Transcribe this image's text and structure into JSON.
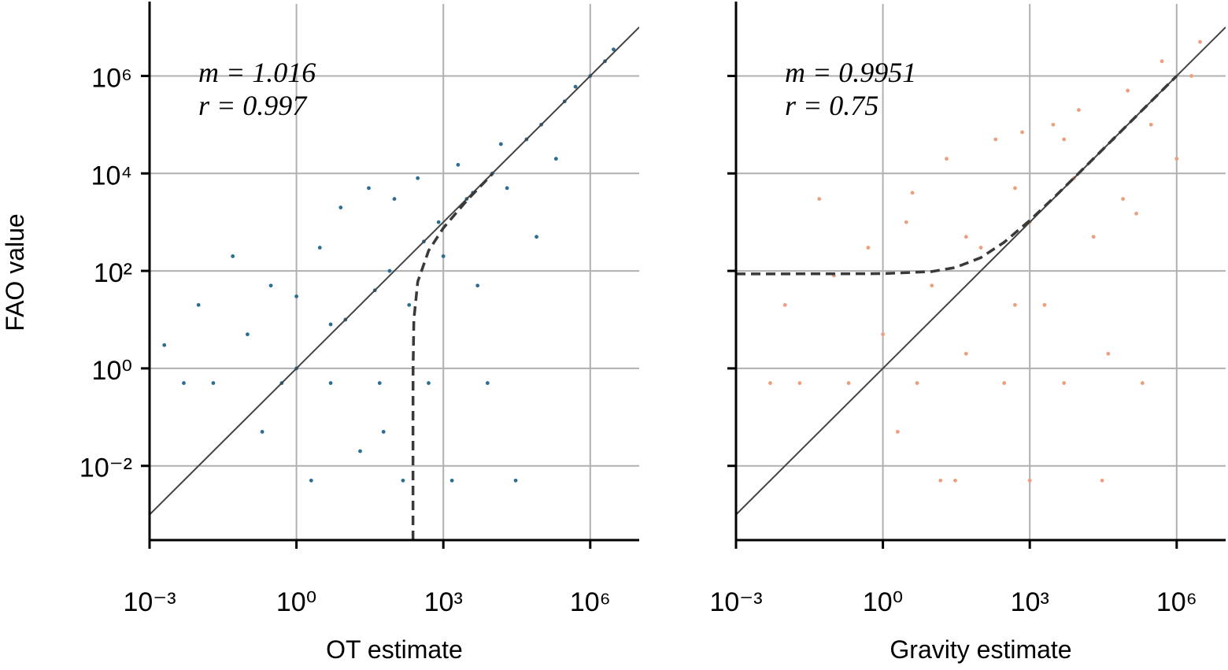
{
  "chart_data": [
    {
      "type": "scatter",
      "xlabel": "OT estimate",
      "ylabel": "FAO value",
      "xlog": true,
      "ylog": true,
      "grid": true,
      "ytick_labels": true,
      "xlim": [
        0.001,
        10000000
      ],
      "ylim": [
        0.0003,
        30000000
      ],
      "xticks": [
        {
          "value": 0.001,
          "label": "10⁻³"
        },
        {
          "value": 1,
          "label": "10⁰"
        },
        {
          "value": 1000,
          "label": "10³"
        },
        {
          "value": 1000000,
          "label": "10⁶"
        }
      ],
      "yticks": [
        {
          "value": 0.01,
          "label": "10⁻²"
        },
        {
          "value": 1,
          "label": "10⁰"
        },
        {
          "value": 100,
          "label": "10²"
        },
        {
          "value": 10000,
          "label": "10⁴"
        },
        {
          "value": 1000000,
          "label": "10⁶"
        }
      ],
      "annotations": [
        "m = 1.016",
        "r = 0.997"
      ],
      "series": [
        {
          "kind": "scatter",
          "color": "#2c6e91",
          "x": [
            0.002,
            0.005,
            0.01,
            0.02,
            0.05,
            0.1,
            0.2,
            0.3,
            0.5,
            1,
            1,
            2,
            3,
            5,
            8,
            10,
            20,
            30,
            50,
            80,
            100,
            150,
            200,
            300,
            500,
            800,
            1000,
            1500,
            2000,
            3000,
            5000,
            8000,
            10000,
            15000,
            20000,
            30000,
            50000,
            80000,
            100000,
            200000,
            300000,
            500000,
            1000000,
            2000000,
            3000000,
            5,
            40,
            400,
            4000,
            60
          ],
          "values": [
            3,
            0.5,
            20,
            0.5,
            200,
            5,
            0.05,
            50,
            0.5,
            1,
            30,
            0.005,
            300,
            0.5,
            2000,
            10,
            0.02,
            5000,
            0.5,
            100,
            3000,
            0.005,
            20,
            8000,
            0.5,
            1000,
            200,
            0.005,
            15000,
            3000,
            50,
            0.5,
            10000,
            40000,
            5000,
            0.005,
            50000,
            500,
            100000,
            20000,
            300000,
            600000,
            1000000,
            2000000,
            3500000,
            8,
            40,
            400,
            4000,
            0.05
          ]
        },
        {
          "kind": "line",
          "color": "#444444",
          "dash": false,
          "x": [
            0.001,
            10000000
          ],
          "values": [
            0.001,
            10000000
          ]
        },
        {
          "kind": "line",
          "color": "#3a3a3a",
          "dash": true,
          "x": [
            240.0003,
            240.001,
            240.01,
            240.1,
            241,
            250,
            300,
            500,
            1000,
            3000,
            10000
          ],
          "values": [
            0.0003,
            0.001,
            0.01,
            0.1,
            1,
            10,
            60,
            260,
            760,
            2760,
            9760
          ]
        }
      ]
    },
    {
      "type": "scatter",
      "xlabel": "Gravity estimate",
      "xlog": true,
      "ylog": true,
      "grid": true,
      "ytick_labels": false,
      "xlim": [
        0.001,
        10000000
      ],
      "ylim": [
        0.0003,
        30000000
      ],
      "xticks": [
        {
          "value": 0.001,
          "label": "10⁻³"
        },
        {
          "value": 1,
          "label": "10⁰"
        },
        {
          "value": 1000,
          "label": "10³"
        },
        {
          "value": 1000000,
          "label": "10⁶"
        }
      ],
      "yticks": [
        0.01,
        1,
        100,
        10000,
        1000000
      ],
      "annotations": [
        "m = 0.9951",
        "r = 0.75"
      ],
      "series": [
        {
          "kind": "scatter",
          "color": "#eb9f7c",
          "x": [
            0.01,
            0.02,
            0.05,
            0.1,
            0.2,
            0.5,
            1,
            2,
            3,
            5,
            10,
            20,
            30,
            50,
            100,
            200,
            300,
            500,
            1000,
            1000,
            2000,
            3000,
            5000,
            8000,
            10000,
            20000,
            30000,
            50000,
            80000,
            100000,
            200000,
            300000,
            500000,
            1000000,
            2000000,
            3000000,
            50,
            500,
            5000,
            15,
            0.005,
            700,
            40000,
            4,
            150000
          ],
          "values": [
            20,
            0.5,
            3000,
            80,
            0.5,
            300,
            5,
            0.05,
            1000,
            0.5,
            50,
            20000,
            0.005,
            2,
            300,
            50000,
            0.5,
            5000,
            0.005,
            1000,
            20,
            100000,
            0.5,
            8000,
            200000,
            500,
            0.005,
            50000,
            3000,
            500000,
            0.5,
            100000,
            2000000,
            20000,
            1000000,
            5000000,
            500,
            20,
            50000,
            0.005,
            0.5,
            70000,
            2,
            4000,
            1500
          ]
        },
        {
          "kind": "line",
          "color": "#444444",
          "dash": false,
          "x": [
            0.001,
            10000000
          ],
          "values": [
            0.001,
            10000000
          ]
        },
        {
          "kind": "line",
          "color": "#3a3a3a",
          "dash": true,
          "x": [
            0.001,
            0.1,
            1,
            10,
            30,
            100,
            300,
            1000,
            3000,
            10000,
            100000,
            1000000
          ],
          "values": [
            87,
            87.1,
            88,
            97,
            117,
            187,
            387,
            1087,
            3087,
            10087,
            100087,
            1000087
          ]
        }
      ]
    }
  ]
}
